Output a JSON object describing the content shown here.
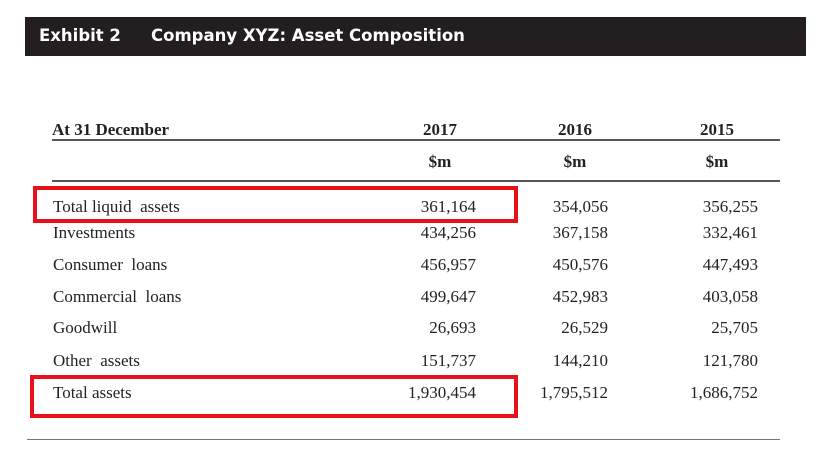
{
  "exhibit": {
    "number": "Exhibit 2",
    "title": "Company XYZ: Asset Composition"
  },
  "table": {
    "header_label": "At 31 December",
    "columns": [
      {
        "year": "2017",
        "unit": "$m"
      },
      {
        "year": "2016",
        "unit": "$m"
      },
      {
        "year": "2015",
        "unit": "$m"
      }
    ],
    "rows": [
      {
        "label": "Total liquid  assets",
        "values": [
          "361,164",
          "354,056",
          "356,255"
        ],
        "highlighted": true
      },
      {
        "label": "Investments",
        "values": [
          "434,256",
          "367,158",
          "332,461"
        ]
      },
      {
        "label": "Consumer  loans",
        "values": [
          "456,957",
          "450,576",
          "447,493"
        ]
      },
      {
        "label": "Commercial  loans",
        "values": [
          "499,647",
          "452,983",
          "403,058"
        ]
      },
      {
        "label": "Goodwill",
        "values": [
          "26,693",
          "26,529",
          "25,705"
        ]
      },
      {
        "label": "Other  assets",
        "values": [
          "151,737",
          "144,210",
          "121,780"
        ]
      },
      {
        "label": "Total assets",
        "values": [
          "1,930,454",
          "1,795,512",
          "1,686,752"
        ],
        "highlighted": true
      }
    ]
  },
  "colors": {
    "header_bar": "#231f20",
    "highlight": "#e8101a"
  }
}
